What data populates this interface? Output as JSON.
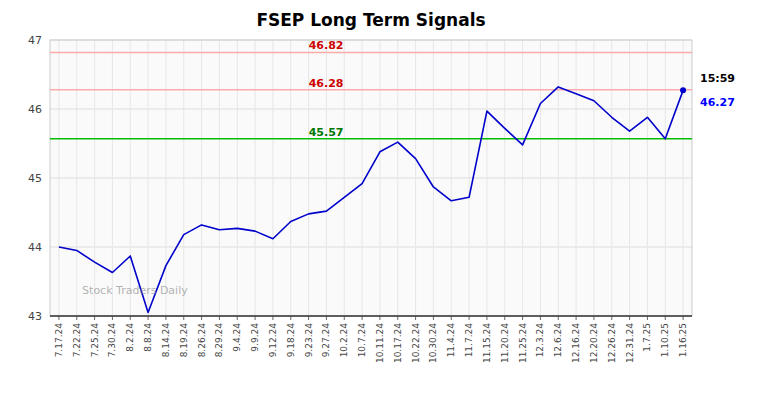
{
  "chart_data": {
    "type": "line",
    "title": "FSEP Long Term Signals",
    "categories": [
      "7.17.24",
      "7.22.24",
      "7.25.24",
      "7.30.24",
      "8.2.24",
      "8.8.24",
      "8.14.24",
      "8.19.24",
      "8.26.24",
      "8.29.24",
      "9.4.24",
      "9.9.24",
      "9.12.24",
      "9.18.24",
      "9.23.24",
      "9.27.24",
      "10.2.24",
      "10.7.24",
      "10.11.24",
      "10.17.24",
      "10.22.24",
      "10.30.24",
      "11.4.24",
      "11.7.24",
      "11.15.24",
      "11.20.24",
      "11.25.24",
      "12.3.24",
      "12.6.24",
      "12.16.24",
      "12.20.24",
      "12.26.24",
      "12.31.24",
      "1.7.25",
      "1.10.25",
      "1.16.25"
    ],
    "values": [
      44.0,
      43.95,
      43.78,
      43.63,
      43.87,
      43.05,
      43.73,
      44.18,
      44.32,
      44.25,
      44.27,
      44.23,
      44.12,
      44.37,
      44.48,
      44.52,
      44.72,
      44.92,
      45.38,
      45.52,
      45.28,
      44.87,
      44.67,
      44.72,
      45.97,
      45.72,
      45.48,
      46.08,
      46.32,
      46.22,
      46.12,
      45.88,
      45.68,
      45.88,
      45.57,
      46.27
    ],
    "color": "#0000cc",
    "ylim": [
      43,
      47
    ],
    "yticks": [
      43,
      44,
      45,
      46,
      47
    ],
    "grid": true,
    "hlines": [
      {
        "value": 46.82,
        "label": "46.82",
        "color": "#ffaaaa",
        "label_color": "#cc0000"
      },
      {
        "value": 46.28,
        "label": "46.28",
        "color": "#ffaaaa",
        "label_color": "#cc0000"
      },
      {
        "value": 45.57,
        "label": "45.57",
        "color": "#00bb00",
        "label_color": "#007700"
      }
    ],
    "annotations": [
      {
        "text": "15:59"
      },
      {
        "text": "46.27",
        "value": 46.27,
        "color": "blue"
      },
      {
        "text": "Stock Traders Daily"
      }
    ]
  }
}
